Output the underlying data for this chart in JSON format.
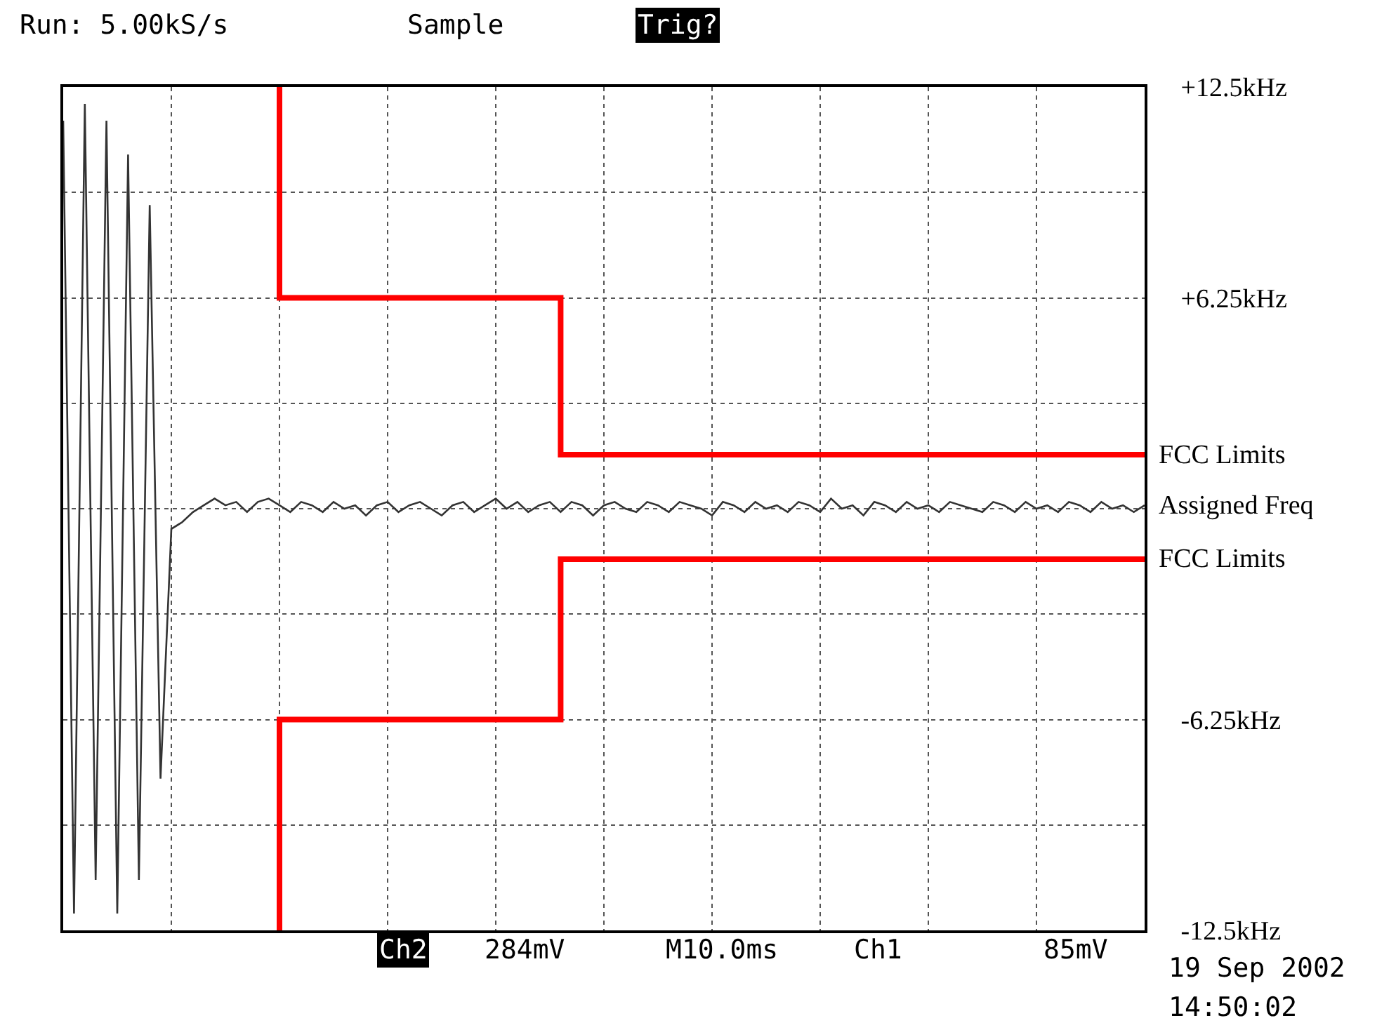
{
  "chart_data": {
    "type": "line",
    "categories": [
      null,
      null,
      null,
      null,
      null,
      null,
      null,
      null,
      null,
      null,
      null,
      null,
      null,
      null,
      null,
      null,
      null,
      null,
      null,
      null,
      null,
      null,
      null,
      null,
      null,
      null,
      null,
      null,
      null,
      null,
      null,
      null,
      null,
      null,
      null,
      null,
      null,
      null,
      null,
      null,
      null,
      null,
      null,
      null,
      null,
      null,
      null,
      null,
      null,
      null,
      null,
      null,
      null,
      null,
      null,
      null,
      null,
      null,
      null,
      null,
      null,
      null,
      null,
      null,
      null,
      null,
      null,
      null,
      null,
      null,
      null,
      null,
      null,
      null,
      null,
      null,
      null,
      null,
      null,
      null,
      null,
      null,
      null,
      null,
      null,
      null,
      null,
      null,
      null,
      null,
      null,
      null,
      null,
      null,
      null,
      null,
      null,
      null,
      null,
      null,
      null
    ],
    "series": [
      {
        "name": "FCC Limits",
        "type": "step",
        "color": "#ff0000",
        "values": [
          null,
          null,
          null,
          null,
          null,
          null,
          null,
          null,
          null,
          null,
          null,
          null,
          null,
          null,
          null,
          null,
          null,
          null,
          null,
          null,
          12.5,
          6.25,
          6.25,
          6.25,
          6.25,
          6.25,
          6.25,
          6.25,
          6.25,
          6.25,
          6.25,
          6.25,
          6.25,
          6.25,
          6.25,
          6.25,
          6.25,
          6.25,
          6.25,
          6.25,
          6.25,
          6.25,
          6.25,
          6.25,
          6.25,
          6.25,
          6.25,
          1.6,
          1.6,
          1.6,
          1.6,
          1.6,
          1.6,
          1.6,
          1.6,
          1.6,
          1.6,
          1.6,
          1.6,
          1.6,
          1.6,
          1.6,
          1.6,
          1.6,
          1.6,
          1.6,
          1.6,
          1.6,
          1.6,
          1.6,
          1.6,
          1.6,
          1.6,
          1.6,
          1.6,
          1.6,
          1.6,
          1.6,
          1.6,
          1.6,
          1.6,
          1.6,
          1.6,
          1.6,
          1.6,
          1.6,
          1.6,
          1.6,
          1.6,
          1.6,
          1.6,
          1.6,
          1.6,
          1.6,
          1.6,
          1.6,
          1.6,
          1.6,
          1.6,
          1.6,
          1.6
        ]
      },
      {
        "name": "Assigned Freq",
        "color": "#333333",
        "values": [
          11.5,
          -12,
          12,
          -11,
          11.5,
          -12,
          10.5,
          -11,
          9,
          -8,
          -0.6,
          -0.4,
          -0.1,
          0.1,
          0.3,
          0.1,
          0.2,
          -0.1,
          0.2,
          0.3,
          0.1,
          -0.1,
          0.2,
          0.1,
          -0.1,
          0.2,
          0,
          0.1,
          -0.2,
          0.1,
          0.2,
          -0.1,
          0.1,
          0.2,
          0,
          -0.2,
          0.1,
          0.2,
          -0.1,
          0.1,
          0.3,
          0,
          0.2,
          -0.1,
          0.1,
          0.2,
          -0.1,
          0.2,
          0.1,
          -0.2,
          0.1,
          0.2,
          0,
          -0.1,
          0.2,
          0.1,
          -0.1,
          0.2,
          0.1,
          0,
          -0.2,
          0.2,
          0.1,
          -0.1,
          0.2,
          0,
          0.1,
          -0.1,
          0.2,
          0.1,
          -0.1,
          0.3,
          0,
          0.1,
          -0.2,
          0.2,
          0.1,
          -0.1,
          0.2,
          0,
          0.1,
          -0.1,
          0.2,
          0.1,
          0,
          -0.1,
          0.2,
          0.1,
          -0.1,
          0.2,
          0,
          0.1,
          -0.1,
          0.2,
          0.1,
          -0.1,
          0.2,
          0,
          0.1,
          -0.1,
          0.1
        ]
      },
      {
        "name": "FCC Limits",
        "type": "step",
        "color": "#ff0000",
        "values": [
          null,
          null,
          null,
          null,
          null,
          null,
          null,
          null,
          null,
          null,
          null,
          null,
          null,
          null,
          null,
          null,
          null,
          null,
          null,
          null,
          -12.5,
          -6.25,
          -6.25,
          -6.25,
          -6.25,
          -6.25,
          -6.25,
          -6.25,
          -6.25,
          -6.25,
          -6.25,
          -6.25,
          -6.25,
          -6.25,
          -6.25,
          -6.25,
          -6.25,
          -6.25,
          -6.25,
          -6.25,
          -6.25,
          -6.25,
          -6.25,
          -6.25,
          -6.25,
          -6.25,
          -6.25,
          -1.5,
          -1.5,
          -1.5,
          -1.5,
          -1.5,
          -1.5,
          -1.5,
          -1.5,
          -1.5,
          -1.5,
          -1.5,
          -1.5,
          -1.5,
          -1.5,
          -1.5,
          -1.5,
          -1.5,
          -1.5,
          -1.5,
          -1.5,
          -1.5,
          -1.5,
          -1.5,
          -1.5,
          -1.5,
          -1.5,
          -1.5,
          -1.5,
          -1.5,
          -1.5,
          -1.5,
          -1.5,
          -1.5,
          -1.5,
          -1.5,
          -1.5,
          -1.5,
          -1.5,
          -1.5,
          -1.5,
          -1.5,
          -1.5,
          -1.5,
          -1.5,
          -1.5,
          -1.5,
          -1.5,
          -1.5,
          -1.5,
          -1.5,
          -1.5,
          -1.5,
          -1.5,
          -1.5
        ]
      }
    ],
    "ylim": [
      -12.5,
      12.5
    ],
    "yticks": [
      {
        "value": 12.5,
        "label": "+12.5kHz"
      },
      {
        "value": 9.375,
        "label": null
      },
      {
        "value": 6.25,
        "label": "+6.25kHz"
      },
      {
        "value": 3.125,
        "label": null
      },
      {
        "value": 0,
        "label": null
      },
      {
        "value": -3.125,
        "label": null
      },
      {
        "value": -6.25,
        "label": "-6.25kHz"
      },
      {
        "value": -9.375,
        "label": null
      },
      {
        "value": -12.5,
        "label": "-12.5kHz"
      }
    ],
    "tick_labels": "y",
    "grid": true,
    "legend": false,
    "marker": "none",
    "line_style": "solid",
    "annotations": [
      "Run: 5.00kS/s",
      "Sample",
      "Trig?",
      "Ch2",
      "284mV",
      "M10.0ms",
      "Ch1",
      "85mV",
      "19 Sep 2002",
      "14:50:02"
    ]
  }
}
